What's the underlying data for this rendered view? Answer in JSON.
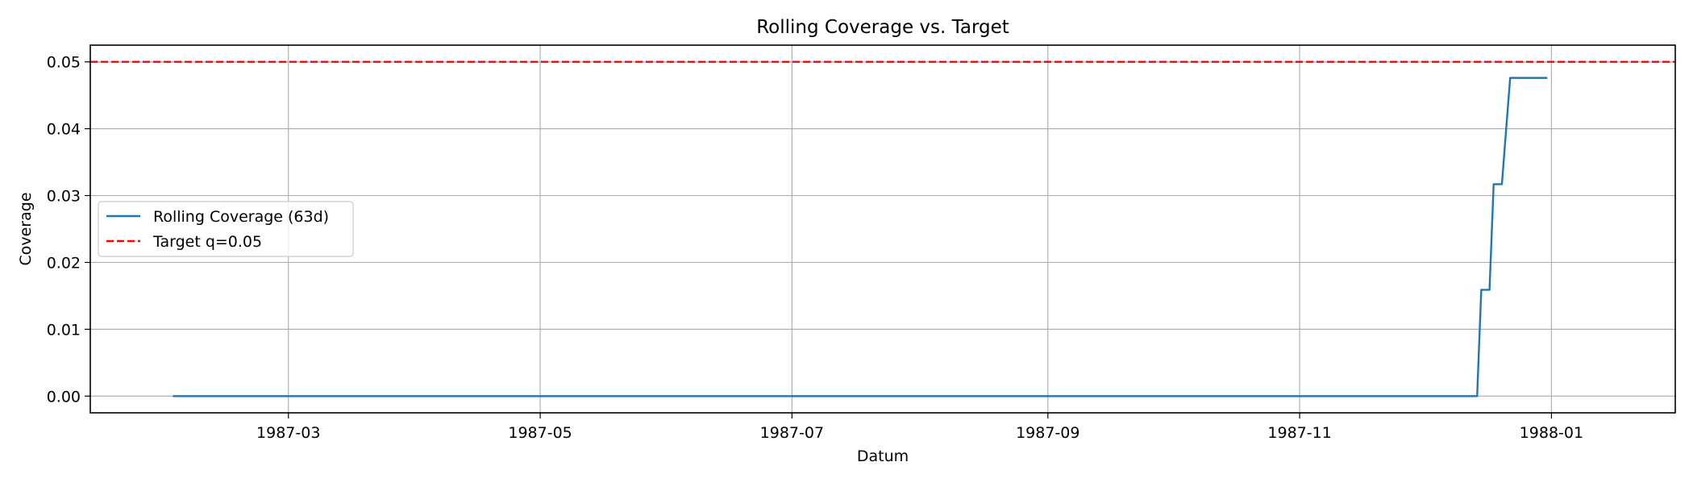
{
  "chart_data": {
    "type": "line",
    "title": "Rolling Coverage vs. Target",
    "xlabel": "Datum",
    "ylabel": "Coverage",
    "xlim": [
      "1987-01-12",
      "1988-01-31"
    ],
    "ylim": [
      -0.0025,
      0.0525
    ],
    "x_ticks": [
      "1987-03",
      "1987-05",
      "1987-07",
      "1987-09",
      "1987-11",
      "1988-01"
    ],
    "y_ticks": [
      "0.00",
      "0.01",
      "0.02",
      "0.03",
      "0.04",
      "0.05"
    ],
    "grid": true,
    "legend_position": "center-left",
    "series": [
      {
        "name": "Rolling Coverage (63d)",
        "color": "#1f77b4",
        "style": "solid",
        "points": [
          [
            "1987-02-01",
            0.0
          ],
          [
            "1987-12-14",
            0.0
          ],
          [
            "1987-12-15",
            0.0159
          ],
          [
            "1987-12-16",
            0.0159
          ],
          [
            "1987-12-17",
            0.0159
          ],
          [
            "1987-12-18",
            0.0317
          ],
          [
            "1987-12-19",
            0.0317
          ],
          [
            "1987-12-20",
            0.0317
          ],
          [
            "1987-12-21",
            0.0397
          ],
          [
            "1987-12-22",
            0.0476
          ],
          [
            "1987-12-31",
            0.0476
          ]
        ]
      },
      {
        "name": "Target q=0.05",
        "color": "#ff0000",
        "style": "dashed",
        "y": 0.05
      }
    ]
  }
}
